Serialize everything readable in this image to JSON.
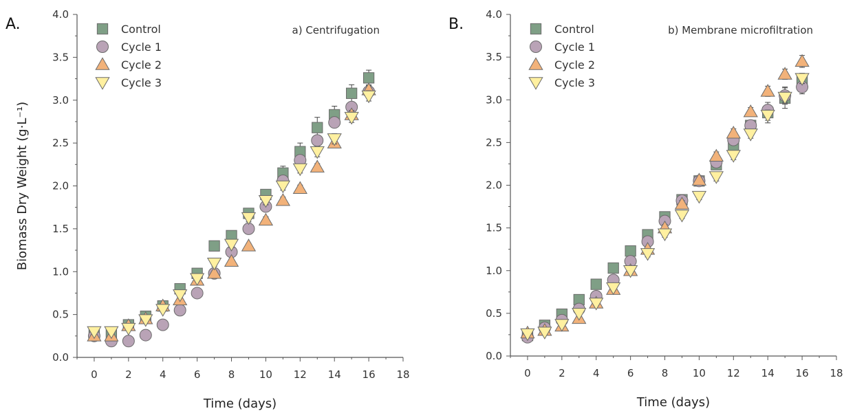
{
  "figure": {
    "marker_colors": {
      "Control": "#7f9f86",
      "Cycle 1": "#b9a3b6",
      "Cycle 2": "#f2b27a",
      "Cycle 3": "#fff0a0"
    },
    "marker_shapes": {
      "Control": "square",
      "Cycle 1": "circle",
      "Cycle 2": "triangle-up",
      "Cycle 3": "triangle-down"
    }
  },
  "chart_data": [
    {
      "type": "scatter",
      "panel_label": "A.",
      "annotation": "a) Centrifugation",
      "xlabel": "Time (days)",
      "ylabel": "Biomass Dry Weight (g·L⁻¹)",
      "xlim": [
        -1,
        18
      ],
      "ylim": [
        0,
        4
      ],
      "xticks": [
        0,
        2,
        4,
        6,
        8,
        10,
        12,
        14,
        16,
        18
      ],
      "yticks": [
        0.0,
        0.5,
        1.0,
        1.5,
        2.0,
        2.5,
        3.0,
        3.5,
        4.0
      ],
      "ytick_labels": [
        "0.0",
        "0.5",
        "1.0",
        "1.5",
        "2.0",
        "2.5",
        "3.0",
        "3.5",
        "4.0"
      ],
      "xtick_labels": [
        "0",
        "2",
        "4",
        "6",
        "8",
        "10",
        "12",
        "14",
        "16",
        "18"
      ],
      "legend_position": "top-left",
      "grid": false,
      "x": [
        0,
        1,
        2,
        3,
        4,
        5,
        6,
        7,
        8,
        9,
        10,
        11,
        12,
        13,
        14,
        15,
        16
      ],
      "series": [
        {
          "name": "Control",
          "values": [
            0.28,
            0.28,
            0.38,
            0.48,
            0.6,
            0.8,
            0.98,
            1.3,
            1.42,
            1.68,
            1.9,
            2.15,
            2.4,
            2.68,
            2.83,
            3.08,
            3.26
          ],
          "errors": [
            0.02,
            0.02,
            0.02,
            0.02,
            0.03,
            0.03,
            0.03,
            0.04,
            0.03,
            0.03,
            0.04,
            0.08,
            0.1,
            0.12,
            0.1,
            0.1,
            0.09
          ]
        },
        {
          "name": "Cycle 1",
          "values": [
            0.25,
            0.19,
            0.19,
            0.26,
            0.38,
            0.55,
            0.75,
            0.98,
            1.23,
            1.5,
            1.76,
            2.06,
            2.3,
            2.53,
            2.74,
            2.92,
            3.1
          ],
          "errors": [
            0.02,
            0.02,
            0.02,
            0.02,
            0.02,
            0.02,
            0.02,
            0.03,
            0.03,
            0.04,
            0.04,
            0.04,
            0.06,
            0.05,
            0.06,
            0.06,
            0.06
          ]
        },
        {
          "name": "Cycle 2",
          "values": [
            0.25,
            0.25,
            0.37,
            0.45,
            0.6,
            0.67,
            0.9,
            0.98,
            1.12,
            1.3,
            1.6,
            1.83,
            1.97,
            2.22,
            2.5,
            2.83,
            3.12
          ],
          "errors": [
            0.02,
            0.02,
            0.02,
            0.03,
            0.03,
            0.03,
            0.03,
            0.03,
            0.03,
            0.03,
            0.04,
            0.04,
            0.04,
            0.04,
            0.05,
            0.05,
            0.06
          ]
        },
        {
          "name": "Cycle 3",
          "values": [
            0.3,
            0.3,
            0.34,
            0.44,
            0.56,
            0.73,
            0.92,
            1.1,
            1.32,
            1.63,
            1.83,
            2.0,
            2.2,
            2.4,
            2.55,
            2.8,
            3.05
          ],
          "errors": [
            0.02,
            0.02,
            0.02,
            0.02,
            0.03,
            0.03,
            0.03,
            0.04,
            0.04,
            0.05,
            0.05,
            0.05,
            0.05,
            0.06,
            0.06,
            0.06,
            0.06
          ]
        }
      ]
    },
    {
      "type": "scatter",
      "panel_label": "B.",
      "annotation": "b) Membrane microfiltration",
      "xlabel": "Time (days)",
      "ylabel": "",
      "xlim": [
        -1,
        18
      ],
      "ylim": [
        0,
        4
      ],
      "xticks": [
        0,
        2,
        4,
        6,
        8,
        10,
        12,
        14,
        16,
        18
      ],
      "yticks": [
        0.0,
        0.5,
        1.0,
        1.5,
        2.0,
        2.5,
        3.0,
        3.5,
        4.0
      ],
      "ytick_labels": [
        "0.0",
        "0.5",
        "1.0",
        "1.5",
        "2.0",
        "2.5",
        "3.0",
        "3.5",
        "4.0"
      ],
      "xtick_labels": [
        "0",
        "2",
        "4",
        "6",
        "8",
        "10",
        "12",
        "14",
        "16",
        "18"
      ],
      "legend_position": "top-left",
      "grid": false,
      "x": [
        0,
        1,
        2,
        3,
        4,
        5,
        6,
        7,
        8,
        9,
        10,
        11,
        12,
        13,
        14,
        15,
        16
      ],
      "series": [
        {
          "name": "Control",
          "values": [
            0.24,
            0.36,
            0.49,
            0.66,
            0.84,
            1.03,
            1.23,
            1.42,
            1.63,
            1.83,
            2.05,
            2.24,
            2.45,
            2.7,
            2.85,
            3.02,
            3.23
          ],
          "errors": [
            0.02,
            0.02,
            0.02,
            0.03,
            0.03,
            0.03,
            0.05,
            0.05,
            0.04,
            0.04,
            0.05,
            0.05,
            0.06,
            0.06,
            0.12,
            0.12,
            0.08
          ]
        },
        {
          "name": "Cycle 1",
          "values": [
            0.22,
            0.33,
            0.42,
            0.55,
            0.7,
            0.89,
            1.11,
            1.34,
            1.58,
            1.82,
            2.05,
            2.27,
            2.53,
            2.7,
            2.88,
            3.05,
            3.15
          ],
          "errors": [
            0.02,
            0.02,
            0.02,
            0.02,
            0.03,
            0.03,
            0.03,
            0.04,
            0.04,
            0.04,
            0.05,
            0.05,
            0.05,
            0.06,
            0.06,
            0.1,
            0.08
          ]
        },
        {
          "name": "Cycle 2",
          "values": [
            0.27,
            0.3,
            0.35,
            0.44,
            0.62,
            0.78,
            1.0,
            1.25,
            1.5,
            1.78,
            2.06,
            2.34,
            2.61,
            2.86,
            3.1,
            3.3,
            3.45
          ],
          "errors": [
            0.02,
            0.02,
            0.02,
            0.02,
            0.03,
            0.03,
            0.03,
            0.03,
            0.04,
            0.04,
            0.04,
            0.05,
            0.05,
            0.05,
            0.06,
            0.06,
            0.07
          ]
        },
        {
          "name": "Cycle 3",
          "values": [
            0.26,
            0.28,
            0.37,
            0.5,
            0.62,
            0.8,
            1.0,
            1.2,
            1.43,
            1.65,
            1.87,
            2.1,
            2.35,
            2.6,
            2.82,
            3.03,
            3.25
          ],
          "errors": [
            0.02,
            0.02,
            0.02,
            0.02,
            0.03,
            0.03,
            0.03,
            0.04,
            0.04,
            0.04,
            0.04,
            0.05,
            0.05,
            0.05,
            0.06,
            0.06,
            0.06
          ]
        }
      ]
    }
  ]
}
